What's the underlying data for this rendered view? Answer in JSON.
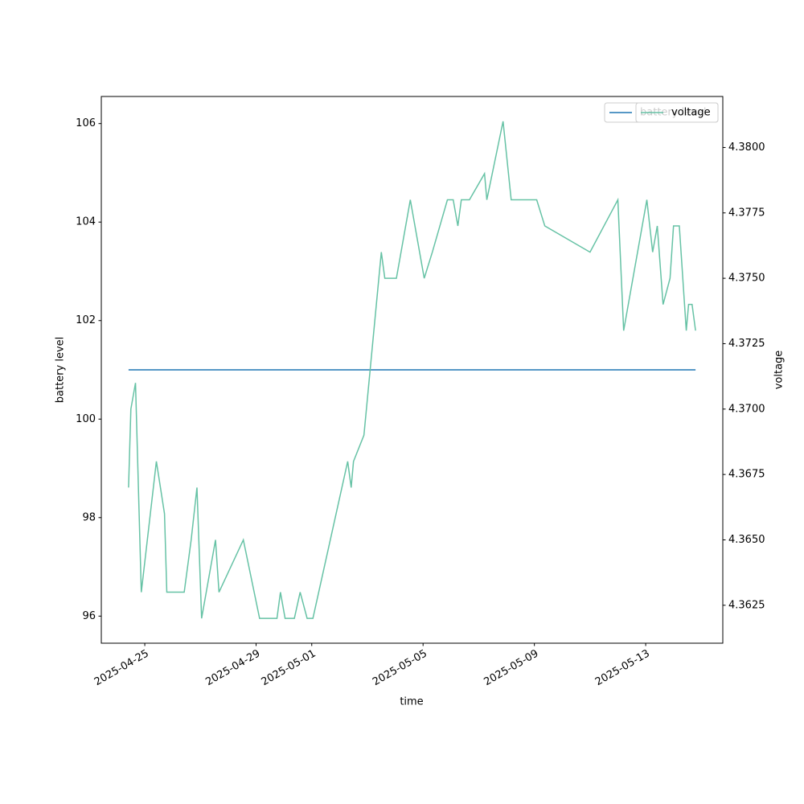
{
  "chart_data": {
    "type": "line",
    "xlabel": "time",
    "ylabel": "battery level",
    "y2label": "voltage",
    "x": [
      "2025-04-24T10:00",
      "2025-04-24T12:00",
      "2025-04-24T16:00",
      "2025-04-24T21:00",
      "2025-04-25T10:00",
      "2025-04-25T17:00",
      "2025-04-25T19:00",
      "2025-04-26T10:00",
      "2025-04-26T16:00",
      "2025-04-26T21:00",
      "2025-04-27T01:00",
      "2025-04-27T13:00",
      "2025-04-27T16:00",
      "2025-04-28T13:00",
      "2025-04-29T03:00",
      "2025-04-29T18:00",
      "2025-04-29T21:00",
      "2025-04-30T01:00",
      "2025-04-30T09:00",
      "2025-04-30T14:00",
      "2025-04-30T20:00",
      "2025-05-01T01:00",
      "2025-05-02T07:00",
      "2025-05-02T10:00",
      "2025-05-02T12:00",
      "2025-05-02T21:00",
      "2025-05-03T12:00",
      "2025-05-03T15:00",
      "2025-05-04T01:00",
      "2025-05-04T13:00",
      "2025-05-05T01:00",
      "2025-05-05T08:00",
      "2025-05-05T21:00",
      "2025-05-06T02:00",
      "2025-05-06T06:00",
      "2025-05-06T09:00",
      "2025-05-06T16:00",
      "2025-05-07T05:00",
      "2025-05-07T07:00",
      "2025-05-07T21:00",
      "2025-05-08T04:00",
      "2025-05-09T02:00",
      "2025-05-09T09:00",
      "2025-05-11T00:00",
      "2025-05-12T00:00",
      "2025-05-12T05:00",
      "2025-05-13T01:00",
      "2025-05-13T06:00",
      "2025-05-13T10:00",
      "2025-05-13T15:00",
      "2025-05-13T21:00",
      "2025-05-14T00:00",
      "2025-05-14T05:00",
      "2025-05-14T11:00",
      "2025-05-14T13:00",
      "2025-05-14T16:00",
      "2025-05-14T19:00"
    ],
    "series": [
      {
        "name": "battery level",
        "color": "#1f77b4",
        "axis": "y",
        "values": [
          101,
          101,
          101,
          101,
          101,
          101,
          101,
          101,
          101,
          101,
          101,
          101,
          101,
          101,
          101,
          101,
          101,
          101,
          101,
          101,
          101,
          101,
          101,
          101,
          101,
          101,
          101,
          101,
          101,
          101,
          101,
          101,
          101,
          101,
          101,
          101,
          101,
          101,
          101,
          101,
          101,
          101,
          101,
          101,
          101,
          101,
          101,
          101,
          101,
          101,
          101,
          101,
          101,
          101,
          101,
          101,
          101
        ]
      },
      {
        "name": "voltage",
        "color": "#66c2a5",
        "axis": "y2",
        "values": [
          4.367,
          4.37,
          4.371,
          4.363,
          4.368,
          4.366,
          4.363,
          4.363,
          4.365,
          4.367,
          4.362,
          4.365,
          4.363,
          4.365,
          4.362,
          4.362,
          4.363,
          4.362,
          4.362,
          4.363,
          4.362,
          4.362,
          4.368,
          4.367,
          4.368,
          4.369,
          4.376,
          4.375,
          4.375,
          4.378,
          4.375,
          4.376,
          4.378,
          4.378,
          4.377,
          4.378,
          4.378,
          4.379,
          4.378,
          4.381,
          4.378,
          4.378,
          4.377,
          4.376,
          4.378,
          4.373,
          4.378,
          4.376,
          4.377,
          4.374,
          4.375,
          4.377,
          4.377,
          4.373,
          4.374,
          4.374,
          4.373
        ]
      }
    ],
    "xlim": [
      "2025-04-23T10:30",
      "2025-05-15T18:30"
    ],
    "xticks": [
      "2025-04-25",
      "2025-04-29",
      "2025-05-01",
      "2025-05-05",
      "2025-05-09",
      "2025-05-13"
    ],
    "ylim": [
      95.45,
      106.55
    ],
    "yticks": [
      96,
      98,
      100,
      102,
      104,
      106
    ],
    "y2lim": [
      4.36105,
      4.38195
    ],
    "y2ticks": [
      4.3625,
      {
        "value": 4.365,
        "label": "4.3650"
      },
      4.3675,
      {
        "value": 4.37,
        "label": "4.3700"
      },
      4.3725,
      {
        "value": 4.375,
        "label": "4.3750"
      },
      4.3775,
      {
        "value": 4.38,
        "label": "4.3800"
      }
    ],
    "legend": "upper right"
  }
}
